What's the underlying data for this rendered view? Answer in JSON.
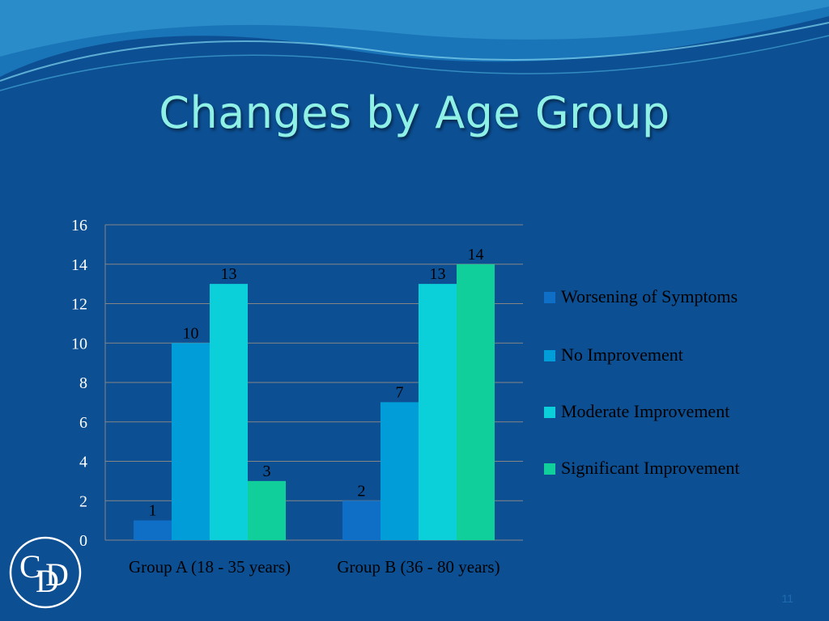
{
  "slide": {
    "title": "Changes by Age Group",
    "slide_number": "11",
    "logo_text": "CDD"
  },
  "colors": {
    "background": "#0c4f93",
    "title": "#8ff0e6",
    "series": [
      "#0f6fc6",
      "#009dd9",
      "#0bd0d9",
      "#10cf9b"
    ]
  },
  "chart_data": {
    "type": "bar",
    "categories": [
      "Group A (18 - 35 years)",
      "Group B (36 - 80 years)"
    ],
    "series": [
      {
        "name": "Worsening of Symptoms",
        "values": [
          1,
          2
        ]
      },
      {
        "name": "No Improvement",
        "values": [
          10,
          7
        ]
      },
      {
        "name": "Moderate Improvement",
        "values": [
          13,
          13
        ]
      },
      {
        "name": "Significant Improvement",
        "values": [
          3,
          14
        ]
      }
    ],
    "ylim": [
      0,
      16
    ],
    "yticks": [
      0,
      2,
      4,
      6,
      8,
      10,
      12,
      14,
      16
    ],
    "grid": true,
    "legend": "right",
    "data_labels": true
  }
}
